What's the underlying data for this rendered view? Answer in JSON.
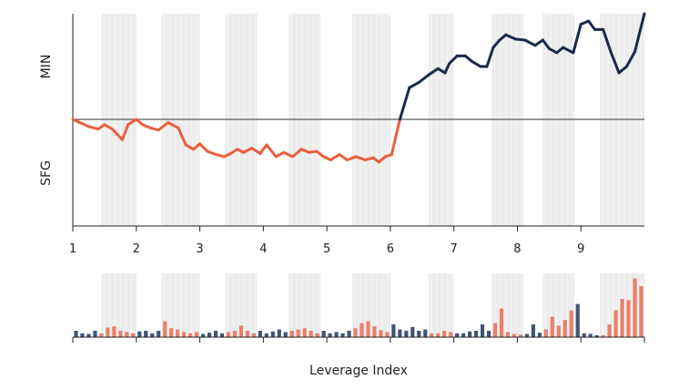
{
  "chart_data": [
    {
      "type": "line",
      "ylabel_top": "MIN",
      "ylabel_bottom": "SFG",
      "x_ticks": [
        "1",
        "2",
        "3",
        "4",
        "5",
        "6",
        "7",
        "8",
        "9"
      ],
      "x_tick_values": [
        1,
        2,
        3,
        4,
        5,
        6,
        7,
        8,
        9
      ],
      "xlim": [
        1,
        10
      ],
      "ylim": [
        -100,
        100
      ],
      "baseline": 0,
      "shaded_bands": [
        [
          1.45,
          2.0
        ],
        [
          2.4,
          3.0
        ],
        [
          3.4,
          3.9
        ],
        [
          4.4,
          4.9
        ],
        [
          5.4,
          6.0
        ],
        [
          6.6,
          7.0
        ],
        [
          7.6,
          8.1
        ],
        [
          8.4,
          8.9
        ],
        [
          9.3,
          10.0
        ]
      ],
      "series": [
        {
          "color_above": "#1b2a4a",
          "color_below": "#e8603c",
          "x": [
            1.0,
            1.11,
            1.26,
            1.4,
            1.5,
            1.62,
            1.78,
            1.87,
            2.0,
            2.1,
            2.22,
            2.35,
            2.5,
            2.66,
            2.78,
            2.9,
            3.0,
            3.12,
            3.26,
            3.38,
            3.49,
            3.59,
            3.69,
            3.82,
            3.95,
            4.05,
            4.2,
            4.32,
            4.46,
            4.6,
            4.72,
            4.84,
            4.95,
            5.06,
            5.2,
            5.32,
            5.46,
            5.6,
            5.73,
            5.82,
            5.92,
            6.02,
            6.15,
            6.3,
            6.45,
            6.6,
            6.75,
            6.86,
            6.93,
            7.05,
            7.18,
            7.28,
            7.42,
            7.52,
            7.62,
            7.72,
            7.82,
            7.97,
            8.12,
            8.28,
            8.4,
            8.5,
            8.62,
            8.72,
            8.88,
            9.0,
            9.12,
            9.22,
            9.35,
            9.47,
            9.6,
            9.72,
            9.85,
            10.0
          ],
          "y": [
            0,
            -3,
            -7,
            -9,
            -5,
            -9,
            -19,
            -5,
            0,
            -5,
            -8,
            -10,
            -3,
            -8,
            -24,
            -28,
            -23,
            -30,
            -33,
            -35,
            -32,
            -28,
            -31,
            -27,
            -32,
            -24,
            -35,
            -31,
            -35,
            -28,
            -31,
            -30,
            -35,
            -38,
            -33,
            -38,
            -35,
            -38,
            -36,
            -40,
            -35,
            -33,
            0,
            30,
            35,
            42,
            48,
            44,
            53,
            60,
            60,
            55,
            50,
            50,
            68,
            75,
            80,
            76,
            75,
            70,
            75,
            67,
            63,
            68,
            63,
            90,
            93,
            85,
            85,
            64,
            44,
            50,
            64,
            100
          ]
        }
      ]
    },
    {
      "type": "bar",
      "xlabel": "Leverage Index",
      "ylim": [
        0,
        1
      ],
      "series": [
        {
          "color_low": "#3e5577",
          "color_high": "#e8806a",
          "x": [
            1.05,
            1.15,
            1.25,
            1.35,
            1.45,
            1.55,
            1.65,
            1.75,
            1.85,
            1.95,
            2.05,
            2.15,
            2.25,
            2.35,
            2.45,
            2.55,
            2.65,
            2.75,
            2.85,
            2.95,
            3.05,
            3.15,
            3.25,
            3.35,
            3.45,
            3.55,
            3.65,
            3.75,
            3.85,
            3.95,
            4.05,
            4.15,
            4.25,
            4.35,
            4.45,
            4.55,
            4.65,
            4.75,
            4.85,
            4.95,
            5.05,
            5.15,
            5.25,
            5.35,
            5.45,
            5.55,
            5.65,
            5.75,
            5.85,
            5.95,
            6.05,
            6.15,
            6.25,
            6.35,
            6.45,
            6.55,
            6.65,
            6.75,
            6.85,
            6.95,
            7.05,
            7.15,
            7.25,
            7.35,
            7.45,
            7.55,
            7.65,
            7.75,
            7.85,
            7.95,
            8.05,
            8.15,
            8.25,
            8.35,
            8.45,
            8.55,
            8.65,
            8.75,
            8.85,
            8.95,
            9.05,
            9.15,
            9.25,
            9.35,
            9.45,
            9.55,
            9.65,
            9.75,
            9.85,
            9.95
          ],
          "values": [
            0.1,
            0.06,
            0.05,
            0.1,
            0.06,
            0.15,
            0.17,
            0.1,
            0.08,
            0.06,
            0.09,
            0.1,
            0.06,
            0.1,
            0.25,
            0.14,
            0.12,
            0.08,
            0.06,
            0.08,
            0.05,
            0.07,
            0.1,
            0.06,
            0.08,
            0.1,
            0.18,
            0.1,
            0.06,
            0.1,
            0.06,
            0.09,
            0.12,
            0.08,
            0.1,
            0.12,
            0.14,
            0.1,
            0.06,
            0.1,
            0.06,
            0.08,
            0.06,
            0.1,
            0.14,
            0.22,
            0.25,
            0.17,
            0.11,
            0.08,
            0.2,
            0.12,
            0.1,
            0.16,
            0.1,
            0.12,
            0.06,
            0.06,
            0.1,
            0.08,
            0.06,
            0.06,
            0.09,
            0.1,
            0.2,
            0.1,
            0.22,
            0.45,
            0.08,
            0.05,
            0.04,
            0.05,
            0.2,
            0.07,
            0.12,
            0.32,
            0.18,
            0.27,
            0.42,
            0.52,
            0.06,
            0.05,
            0.03,
            0.03,
            0.2,
            0.42,
            0.6,
            0.58,
            0.92,
            0.8
          ]
        }
      ]
    }
  ]
}
